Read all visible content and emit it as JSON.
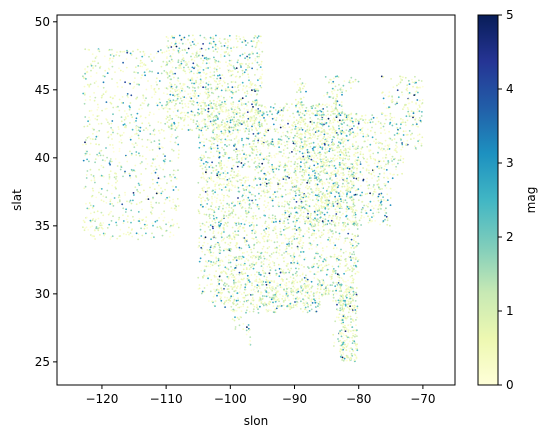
{
  "chart_data": {
    "type": "scatter",
    "title": "",
    "xlabel": "slon",
    "ylabel": "slat",
    "xlim": [
      -127,
      -65
    ],
    "ylim": [
      23.3,
      50.5
    ],
    "xticks": [
      -120,
      -110,
      -100,
      -90,
      -80,
      -70
    ],
    "yticks": [
      25,
      30,
      35,
      40,
      45,
      50
    ],
    "grid": false,
    "colorbar": {
      "label": "mag",
      "range": [
        0,
        5
      ],
      "ticks": [
        0,
        1,
        2,
        3,
        4,
        5
      ],
      "colormap": "YlGnBu",
      "stops": [
        "#ffffd9",
        "#edf8b1",
        "#c7e9b4",
        "#7fcdbb",
        "#41b6c4",
        "#1d91c0",
        "#225ea8",
        "#253494",
        "#081d58"
      ]
    },
    "point_color_encodes": "mag",
    "density_regions": [
      {
        "lon": [
          -105,
          -80
        ],
        "lat": [
          29,
          44
        ],
        "weight": 0.45
      },
      {
        "lon": [
          -90,
          -70
        ],
        "lat": [
          35,
          46
        ],
        "weight": 0.2
      },
      {
        "lon": [
          -123,
          -108
        ],
        "lat": [
          34,
          48
        ],
        "weight": 0.12
      },
      {
        "lon": [
          -110,
          -95
        ],
        "lat": [
          42,
          49
        ],
        "weight": 0.12
      },
      {
        "lon": [
          -100,
          -82
        ],
        "lat": [
          26,
          31
        ],
        "weight": 0.07
      },
      {
        "lon": [
          -83,
          -79.5
        ],
        "lat": [
          24.8,
          30.5
        ],
        "weight": 0.04
      }
    ],
    "point_count": 6500
  }
}
